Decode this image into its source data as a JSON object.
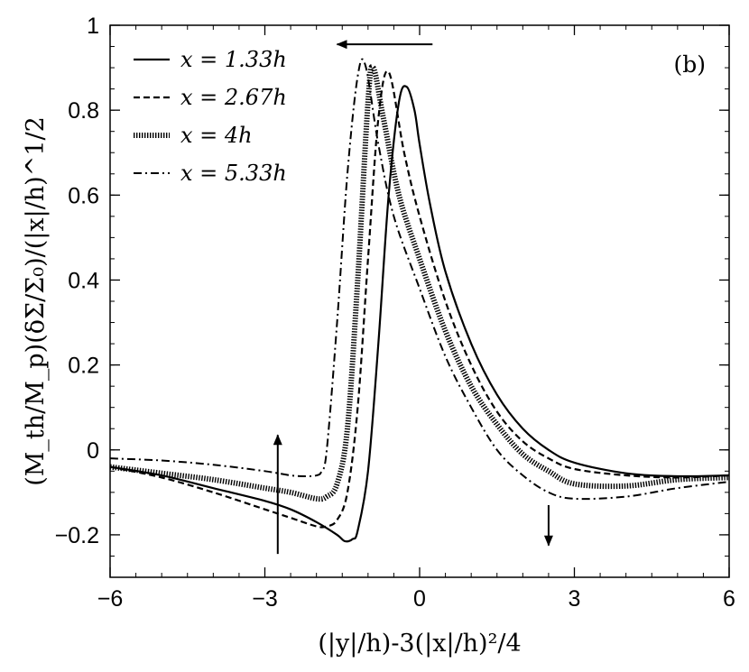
{
  "chart_data": {
    "type": "line",
    "panel_label": "(b)",
    "xlabel": "(|y|/h)-3(|x|/h)²/4",
    "ylabel": "(M_th/M_p)(δΣ/Σ₀)/(|x|/h)^1/2",
    "xlim": [
      -6,
      6
    ],
    "ylim": [
      -0.3,
      1.0
    ],
    "xticks": [
      -6,
      -3,
      0,
      3,
      6
    ],
    "xtick_labels": [
      "−6",
      "−3",
      "0",
      "3",
      "6"
    ],
    "yticks": [
      -0.2,
      0,
      0.2,
      0.4,
      0.6,
      0.8,
      1
    ],
    "ytick_labels": [
      "−0.2",
      "0",
      "0.2",
      "0.4",
      "0.6",
      "0.8",
      "1"
    ],
    "legend_position": "top-left",
    "series": [
      {
        "name": "x = 1.33h",
        "style": "solid",
        "x": [
          -6,
          -5,
          -4,
          -3,
          -2.5,
          -2,
          -1.6,
          -1.45,
          -1.3,
          -1.2,
          -1.0,
          -0.8,
          -0.6,
          -0.4,
          -0.25,
          -0.1,
          0,
          0.2,
          0.5,
          1,
          1.5,
          2,
          2.5,
          3,
          4,
          5,
          6
        ],
        "y": [
          -0.04,
          -0.06,
          -0.09,
          -0.12,
          -0.14,
          -0.17,
          -0.2,
          -0.215,
          -0.21,
          -0.19,
          -0.05,
          0.25,
          0.6,
          0.82,
          0.855,
          0.8,
          0.72,
          0.58,
          0.42,
          0.25,
          0.13,
          0.05,
          0.0,
          -0.03,
          -0.055,
          -0.062,
          -0.06
        ]
      },
      {
        "name": "x = 2.67h",
        "style": "dashed",
        "x": [
          -6,
          -5,
          -4,
          -3,
          -2.5,
          -2,
          -1.8,
          -1.6,
          -1.4,
          -1.2,
          -1.0,
          -0.8,
          -0.6,
          -0.3,
          0,
          0.5,
          1,
          1.5,
          2,
          2.5,
          3,
          4,
          5,
          6
        ],
        "y": [
          -0.04,
          -0.065,
          -0.1,
          -0.14,
          -0.16,
          -0.18,
          -0.18,
          -0.165,
          -0.1,
          0.1,
          0.45,
          0.78,
          0.89,
          0.7,
          0.55,
          0.35,
          0.2,
          0.09,
          0.02,
          -0.02,
          -0.045,
          -0.06,
          -0.065,
          -0.06
        ]
      },
      {
        "name": "x = 4h",
        "style": "dotted",
        "x": [
          -6,
          -5,
          -4,
          -3,
          -2.5,
          -2,
          -1.8,
          -1.6,
          -1.4,
          -1.2,
          -1.0,
          -0.9,
          -0.7,
          -0.4,
          0,
          0.5,
          1,
          1.5,
          2,
          2.5,
          3,
          4,
          5,
          6
        ],
        "y": [
          -0.04,
          -0.055,
          -0.07,
          -0.09,
          -0.1,
          -0.115,
          -0.11,
          -0.08,
          0.05,
          0.4,
          0.82,
          0.9,
          0.78,
          0.6,
          0.45,
          0.28,
          0.15,
          0.06,
          -0.01,
          -0.05,
          -0.08,
          -0.085,
          -0.07,
          -0.065
        ]
      },
      {
        "name": "x = 5.33h",
        "style": "dashdot",
        "x": [
          -6,
          -5,
          -4,
          -3,
          -2.5,
          -2.2,
          -2.0,
          -1.9,
          -1.8,
          -1.6,
          -1.4,
          -1.2,
          -1.05,
          -0.8,
          -0.5,
          0,
          0.5,
          1,
          1.5,
          2,
          2.5,
          3,
          4,
          5,
          6
        ],
        "y": [
          -0.02,
          -0.025,
          -0.035,
          -0.05,
          -0.06,
          -0.062,
          -0.06,
          -0.05,
          0.0,
          0.3,
          0.65,
          0.88,
          0.905,
          0.72,
          0.55,
          0.38,
          0.22,
          0.1,
          0.0,
          -0.06,
          -0.1,
          -0.115,
          -0.11,
          -0.09,
          -0.075
        ]
      }
    ],
    "annotations": [
      {
        "type": "arrow",
        "direction": "left",
        "x_from": 0.25,
        "x_to": -1.6,
        "y": 0.955
      },
      {
        "type": "arrow",
        "direction": "up",
        "x": -2.75,
        "y_from": -0.245,
        "y_to": 0.035
      },
      {
        "type": "arrow",
        "direction": "down",
        "x": 2.5,
        "y_from": -0.13,
        "y_to": -0.225
      }
    ]
  }
}
